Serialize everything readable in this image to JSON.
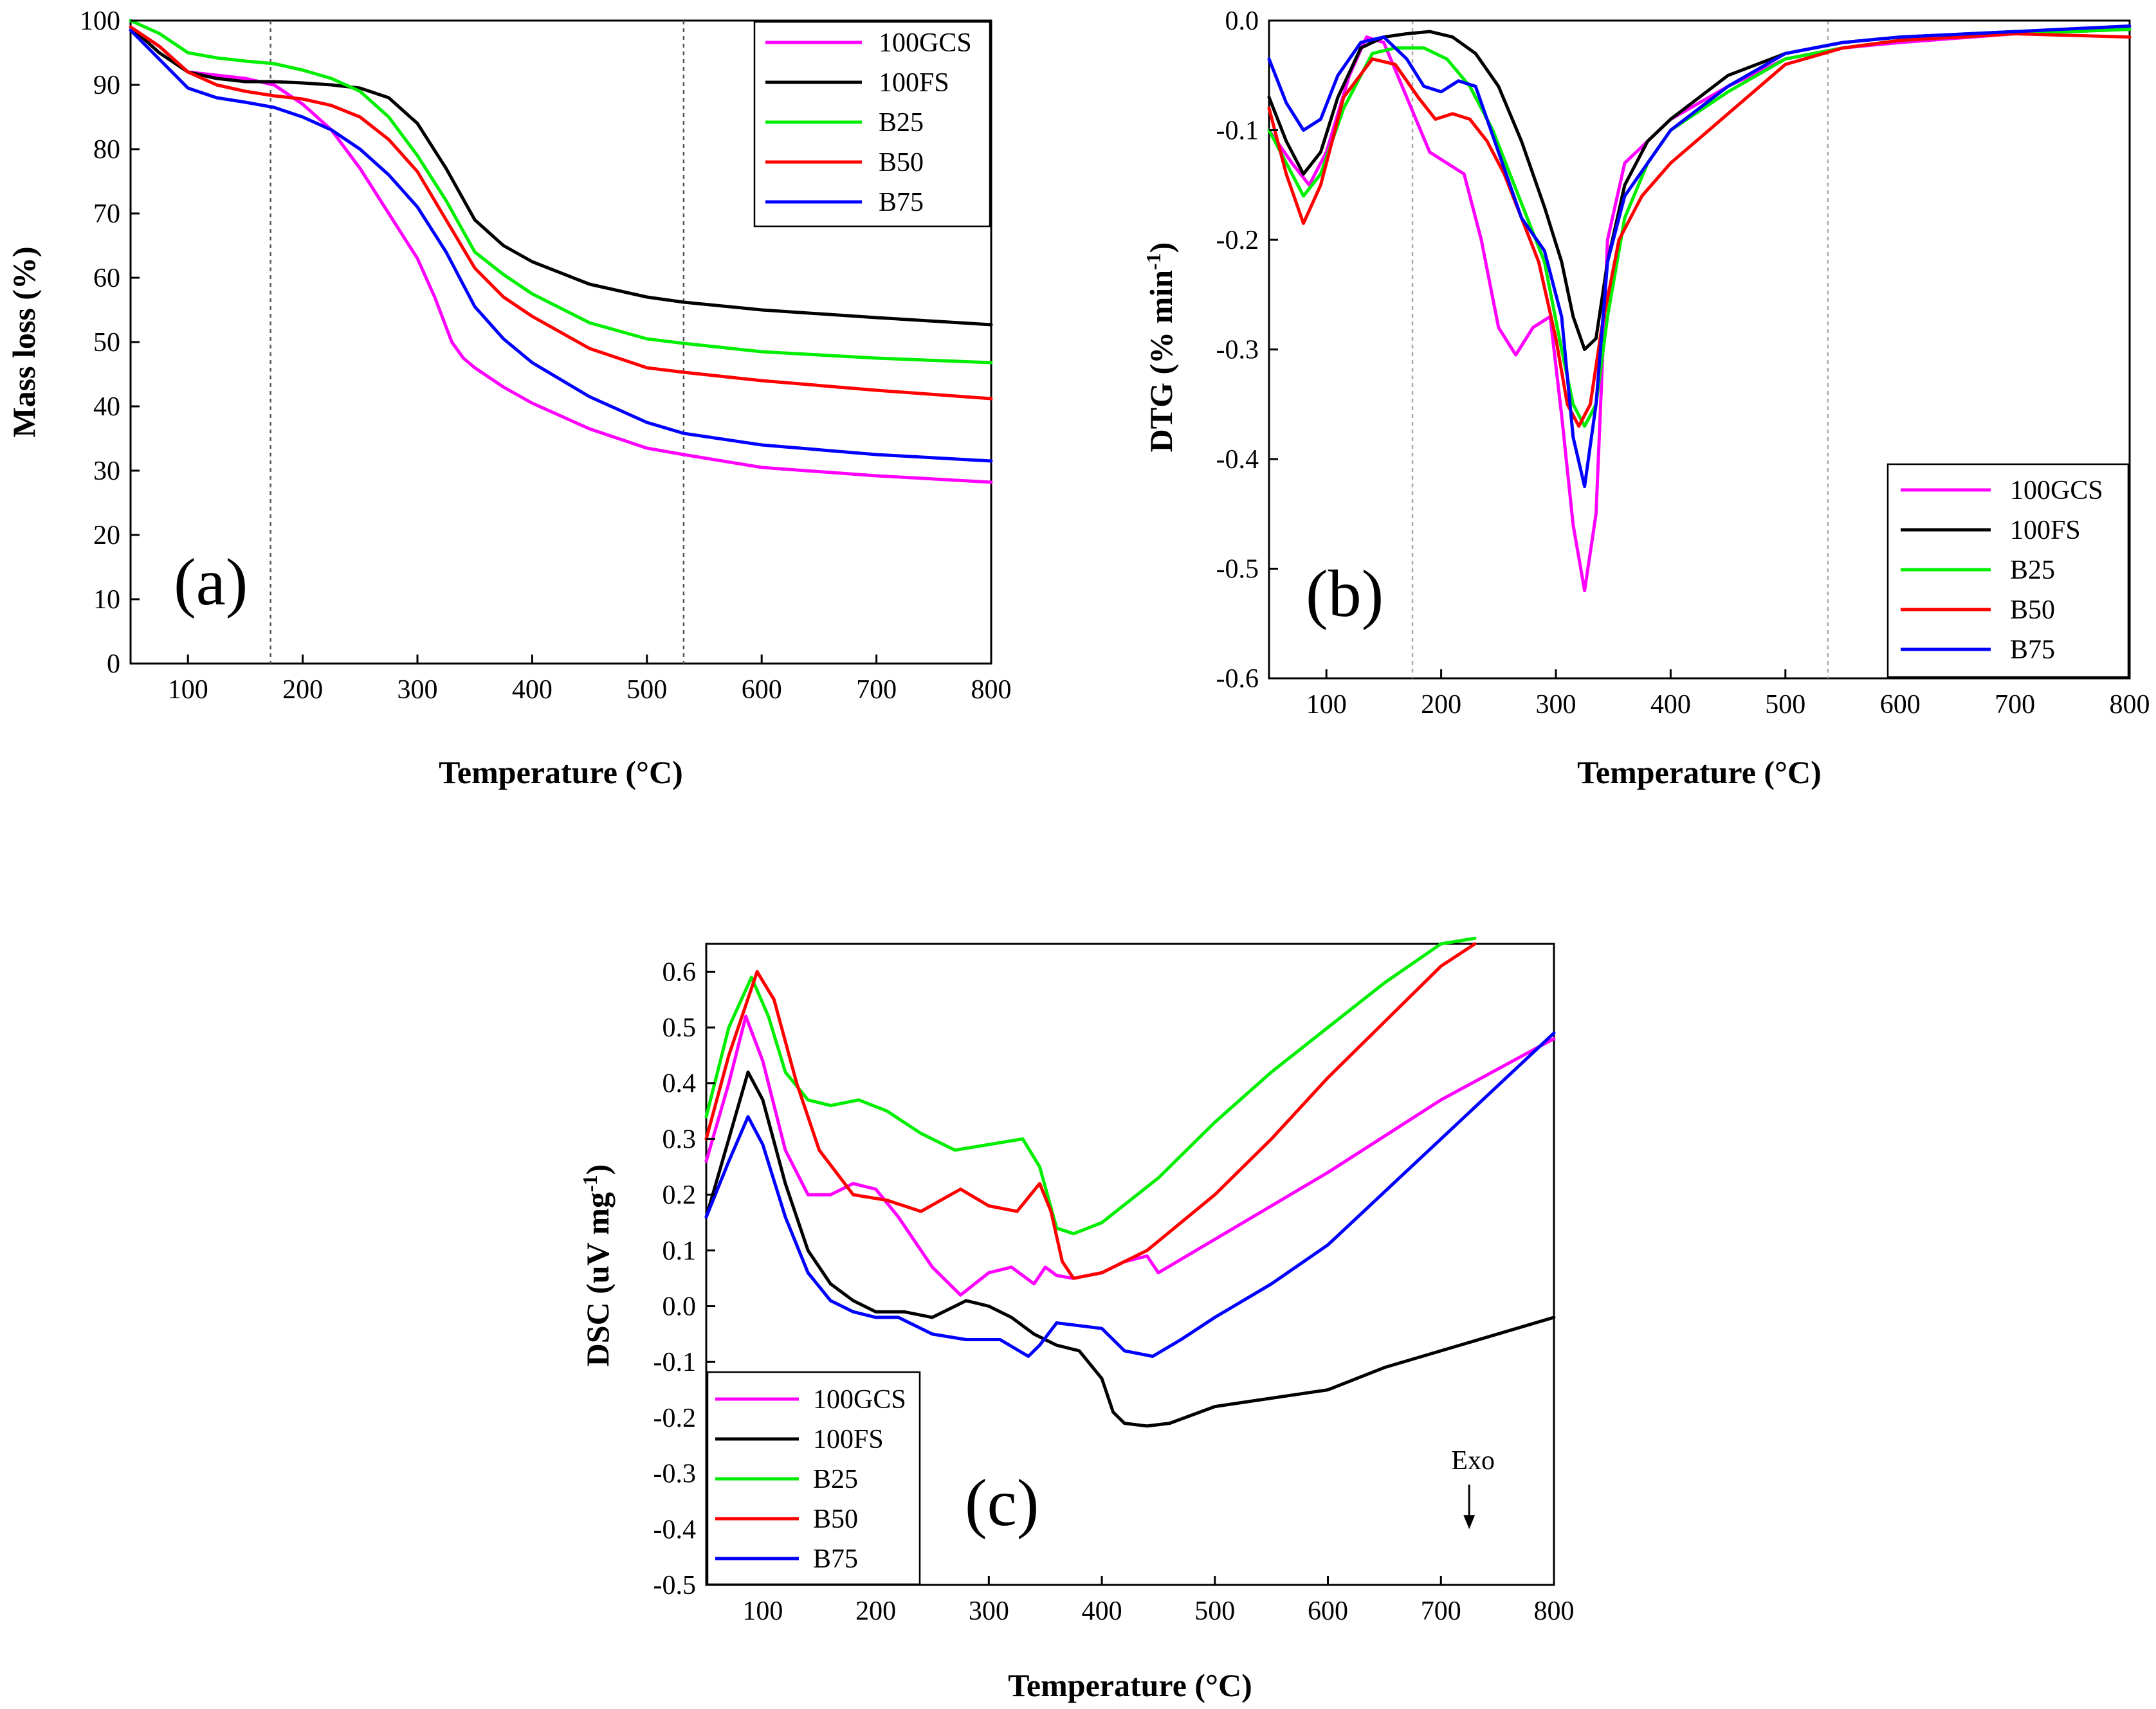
{
  "chart_data": [
    {
      "id": "a",
      "type": "line",
      "panel_label": "(a)",
      "title": "",
      "xlabel": "Temperature (°C)",
      "ylabel": "Mass loss (%)",
      "xlim": [
        50,
        800
      ],
      "ylim": [
        0,
        100
      ],
      "xticks": [
        "100",
        "200",
        "300",
        "400",
        "500",
        "600",
        "700",
        "800"
      ],
      "yticks": [
        "0",
        "10",
        "20",
        "30",
        "40",
        "50",
        "60",
        "70",
        "80",
        "90",
        "100"
      ],
      "guides": [
        172,
        532
      ],
      "legend_position": "top-right",
      "series": [
        {
          "name": "100GCS",
          "color": "#ff00ff",
          "x": [
            50,
            75,
            100,
            125,
            150,
            175,
            200,
            225,
            250,
            275,
            300,
            315,
            330,
            340,
            350,
            375,
            400,
            450,
            500,
            532,
            600,
            700,
            800
          ],
          "y": [
            99,
            96,
            92,
            91.5,
            91,
            90,
            87,
            83,
            77,
            70,
            63,
            57,
            50,
            47.5,
            46,
            43,
            40.5,
            36.5,
            33.5,
            32.5,
            30.5,
            29.2,
            28.2
          ]
        },
        {
          "name": "100FS",
          "color": "#000000",
          "x": [
            50,
            75,
            100,
            125,
            150,
            175,
            200,
            225,
            250,
            275,
            300,
            325,
            350,
            375,
            400,
            450,
            500,
            532,
            600,
            700,
            800
          ],
          "y": [
            99,
            95,
            92,
            91,
            90.5,
            90.5,
            90.3,
            90,
            89.5,
            88,
            84,
            77,
            69,
            65,
            62.5,
            59,
            57,
            56.2,
            55,
            53.8,
            52.7
          ]
        },
        {
          "name": "B25",
          "color": "#00ee00",
          "x": [
            50,
            75,
            100,
            125,
            150,
            175,
            200,
            225,
            250,
            275,
            300,
            325,
            350,
            375,
            400,
            450,
            500,
            532,
            600,
            700,
            800
          ],
          "y": [
            100,
            98,
            95,
            94.2,
            93.7,
            93.3,
            92.3,
            91,
            89,
            85,
            79,
            72,
            64,
            60.5,
            57.5,
            53,
            50.5,
            49.8,
            48.5,
            47.5,
            46.8
          ]
        },
        {
          "name": "B50",
          "color": "#ff0000",
          "x": [
            50,
            75,
            100,
            125,
            150,
            175,
            200,
            225,
            250,
            275,
            300,
            325,
            350,
            375,
            400,
            450,
            500,
            532,
            600,
            700,
            800
          ],
          "y": [
            99,
            96,
            92,
            90,
            89,
            88.3,
            87.8,
            86.8,
            85,
            81.5,
            76.5,
            69,
            61.5,
            57,
            54,
            49,
            46,
            45.3,
            44,
            42.5,
            41.2
          ]
        },
        {
          "name": "B75",
          "color": "#0000ff",
          "x": [
            50,
            75,
            100,
            125,
            150,
            175,
            200,
            225,
            250,
            275,
            300,
            325,
            350,
            375,
            400,
            450,
            500,
            532,
            600,
            700,
            800
          ],
          "y": [
            98.5,
            94,
            89.5,
            88,
            87.3,
            86.5,
            85,
            83,
            80,
            76,
            71,
            64,
            55.5,
            50.5,
            46.8,
            41.5,
            37.5,
            35.8,
            34,
            32.5,
            31.5
          ]
        }
      ]
    },
    {
      "id": "b",
      "type": "line",
      "panel_label": "(b)",
      "title": "",
      "xlabel": "Temperature (°C)",
      "ylabel_main": "DTG (% min",
      "ylabel_sup": "-1",
      "ylabel_end": ")",
      "xlim": [
        50,
        800
      ],
      "ylim": [
        -0.6,
        0.0
      ],
      "xticks": [
        "100",
        "200",
        "300",
        "400",
        "500",
        "600",
        "700",
        "800"
      ],
      "yticks": [
        "0.0",
        "-0.1",
        "-0.2",
        "-0.3",
        "-0.4",
        "-0.5",
        "-0.6"
      ],
      "guides": [
        175,
        537
      ],
      "legend_position": "bottom-right",
      "series": [
        {
          "name": "100GCS",
          "color": "#ff00ff",
          "x": [
            50,
            70,
            85,
            100,
            120,
            135,
            150,
            170,
            190,
            205,
            220,
            235,
            250,
            265,
            280,
            295,
            305,
            315,
            325,
            335,
            345,
            360,
            380,
            400,
            450,
            500,
            550,
            600,
            700,
            800
          ],
          "y": [
            -0.1,
            -0.13,
            -0.15,
            -0.12,
            -0.05,
            -0.015,
            -0.02,
            -0.07,
            -0.12,
            -0.13,
            -0.14,
            -0.2,
            -0.28,
            -0.305,
            -0.28,
            -0.27,
            -0.36,
            -0.46,
            -0.52,
            -0.45,
            -0.2,
            -0.13,
            -0.11,
            -0.09,
            -0.06,
            -0.035,
            -0.025,
            -0.02,
            -0.012,
            -0.008
          ]
        },
        {
          "name": "100FS",
          "color": "#000000",
          "x": [
            50,
            65,
            80,
            95,
            110,
            130,
            150,
            170,
            190,
            210,
            230,
            250,
            270,
            290,
            305,
            315,
            325,
            335,
            345,
            360,
            380,
            400,
            450,
            500,
            550,
            600,
            700,
            800
          ],
          "y": [
            -0.07,
            -0.11,
            -0.14,
            -0.12,
            -0.07,
            -0.025,
            -0.015,
            -0.012,
            -0.01,
            -0.015,
            -0.03,
            -0.06,
            -0.11,
            -0.17,
            -0.22,
            -0.27,
            -0.3,
            -0.29,
            -0.22,
            -0.15,
            -0.11,
            -0.09,
            -0.05,
            -0.03,
            -0.02,
            -0.015,
            -0.01,
            -0.008
          ]
        },
        {
          "name": "B25",
          "color": "#00ee00",
          "x": [
            50,
            65,
            80,
            95,
            115,
            140,
            160,
            185,
            205,
            225,
            245,
            260,
            275,
            290,
            305,
            315,
            325,
            335,
            345,
            360,
            380,
            400,
            450,
            500,
            550,
            600,
            700,
            800
          ],
          "y": [
            -0.1,
            -0.13,
            -0.16,
            -0.14,
            -0.08,
            -0.03,
            -0.025,
            -0.025,
            -0.035,
            -0.06,
            -0.1,
            -0.14,
            -0.18,
            -0.22,
            -0.3,
            -0.35,
            -0.37,
            -0.35,
            -0.27,
            -0.18,
            -0.13,
            -0.1,
            -0.065,
            -0.035,
            -0.025,
            -0.018,
            -0.012,
            -0.008
          ]
        },
        {
          "name": "B50",
          "color": "#ff0000",
          "x": [
            50,
            65,
            80,
            95,
            115,
            140,
            160,
            180,
            195,
            210,
            225,
            240,
            255,
            270,
            285,
            300,
            310,
            320,
            330,
            340,
            355,
            375,
            400,
            450,
            500,
            550,
            600,
            700,
            800
          ],
          "y": [
            -0.08,
            -0.14,
            -0.185,
            -0.15,
            -0.07,
            -0.035,
            -0.04,
            -0.07,
            -0.09,
            -0.085,
            -0.09,
            -0.11,
            -0.14,
            -0.18,
            -0.22,
            -0.29,
            -0.35,
            -0.37,
            -0.35,
            -0.28,
            -0.2,
            -0.16,
            -0.13,
            -0.085,
            -0.04,
            -0.025,
            -0.018,
            -0.012,
            -0.015
          ]
        },
        {
          "name": "B75",
          "color": "#0000ff",
          "x": [
            50,
            65,
            80,
            95,
            110,
            130,
            150,
            170,
            185,
            200,
            215,
            230,
            250,
            270,
            290,
            305,
            315,
            325,
            335,
            345,
            360,
            380,
            400,
            450,
            500,
            550,
            600,
            700,
            800
          ],
          "y": [
            -0.035,
            -0.075,
            -0.1,
            -0.09,
            -0.05,
            -0.02,
            -0.015,
            -0.035,
            -0.06,
            -0.065,
            -0.055,
            -0.06,
            -0.12,
            -0.18,
            -0.21,
            -0.27,
            -0.38,
            -0.425,
            -0.35,
            -0.22,
            -0.16,
            -0.13,
            -0.1,
            -0.06,
            -0.03,
            -0.02,
            -0.015,
            -0.01,
            -0.005
          ]
        }
      ]
    },
    {
      "id": "c",
      "type": "line",
      "panel_label": "(c)",
      "title": "",
      "xlabel": "Temperature (°C)",
      "ylabel_main": "DSC (uV mg",
      "ylabel_sup": "-1",
      "ylabel_end": ")",
      "xlim": [
        50,
        800
      ],
      "ylim": [
        -0.5,
        0.65
      ],
      "xticks": [
        "100",
        "200",
        "300",
        "400",
        "500",
        "600",
        "700",
        "800"
      ],
      "yticks": [
        "0.6",
        "0.5",
        "0.4",
        "0.3",
        "0.2",
        "0.1",
        "0.0",
        "-0.1",
        "-0.2",
        "-0.3",
        "-0.4",
        "-0.5"
      ],
      "guides": [],
      "legend_position": "bottom-left",
      "annotation": {
        "text": "Exo",
        "x": 725,
        "y_top": -0.32,
        "y_bottom": -0.4
      },
      "series": [
        {
          "name": "100GCS",
          "color": "#ff00ff",
          "x": [
            50,
            70,
            85,
            100,
            120,
            140,
            160,
            180,
            200,
            220,
            250,
            275,
            300,
            320,
            340,
            350,
            360,
            375,
            400,
            420,
            440,
            450,
            500,
            600,
            700,
            800
          ],
          "y": [
            0.26,
            0.4,
            0.52,
            0.44,
            0.28,
            0.2,
            0.2,
            0.22,
            0.21,
            0.16,
            0.07,
            0.02,
            0.06,
            0.07,
            0.04,
            0.07,
            0.055,
            0.05,
            0.06,
            0.08,
            0.09,
            0.06,
            0.12,
            0.24,
            0.37,
            0.48
          ]
        },
        {
          "name": "100FS",
          "color": "#000000",
          "x": [
            50,
            70,
            87,
            100,
            120,
            140,
            160,
            180,
            200,
            225,
            250,
            280,
            300,
            320,
            340,
            360,
            380,
            400,
            410,
            420,
            440,
            460,
            500,
            600,
            650,
            700,
            800
          ],
          "y": [
            0.16,
            0.3,
            0.42,
            0.37,
            0.22,
            0.1,
            0.04,
            0.01,
            -0.01,
            -0.01,
            -0.02,
            0.01,
            0.0,
            -0.02,
            -0.05,
            -0.07,
            -0.08,
            -0.13,
            -0.19,
            -0.21,
            -0.215,
            -0.21,
            -0.18,
            -0.15,
            -0.11,
            -0.08,
            -0.02
          ]
        },
        {
          "name": "B25",
          "color": "#00ee00",
          "x": [
            50,
            70,
            90,
            105,
            120,
            140,
            160,
            185,
            210,
            240,
            270,
            300,
            330,
            345,
            360,
            375,
            400,
            450,
            500,
            550,
            600,
            650,
            700,
            730
          ],
          "y": [
            0.34,
            0.5,
            0.59,
            0.52,
            0.42,
            0.37,
            0.36,
            0.37,
            0.35,
            0.31,
            0.28,
            0.29,
            0.3,
            0.25,
            0.14,
            0.13,
            0.15,
            0.23,
            0.33,
            0.42,
            0.5,
            0.58,
            0.65,
            0.66
          ]
        },
        {
          "name": "B50",
          "color": "#ff0000",
          "x": [
            50,
            70,
            95,
            110,
            130,
            150,
            180,
            210,
            240,
            275,
            300,
            325,
            345,
            355,
            365,
            375,
            400,
            440,
            500,
            550,
            600,
            650,
            700,
            730
          ],
          "y": [
            0.3,
            0.45,
            0.6,
            0.55,
            0.4,
            0.28,
            0.2,
            0.19,
            0.17,
            0.21,
            0.18,
            0.17,
            0.22,
            0.17,
            0.08,
            0.05,
            0.06,
            0.1,
            0.2,
            0.3,
            0.41,
            0.51,
            0.61,
            0.65
          ]
        },
        {
          "name": "B75",
          "color": "#0000ff",
          "x": [
            50,
            70,
            87,
            100,
            120,
            140,
            160,
            180,
            200,
            220,
            250,
            280,
            310,
            335,
            345,
            360,
            400,
            420,
            445,
            470,
            500,
            550,
            600,
            700,
            800
          ],
          "y": [
            0.16,
            0.26,
            0.34,
            0.29,
            0.16,
            0.06,
            0.01,
            -0.01,
            -0.02,
            -0.02,
            -0.05,
            -0.06,
            -0.06,
            -0.09,
            -0.07,
            -0.03,
            -0.04,
            -0.08,
            -0.09,
            -0.06,
            -0.02,
            0.04,
            0.11,
            0.3,
            0.49
          ]
        }
      ]
    }
  ]
}
